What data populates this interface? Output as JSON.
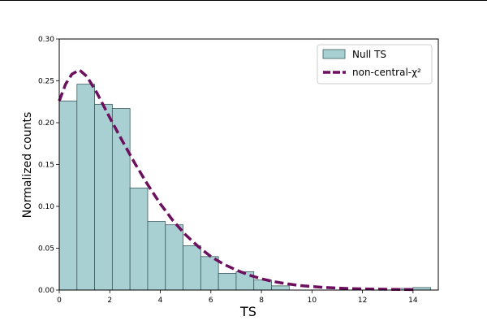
{
  "chart_data": {
    "type": "bar",
    "title": "",
    "xlabel": "TS",
    "ylabel": "Normalized counts",
    "xlim": [
      0,
      15
    ],
    "ylim": [
      0,
      0.3
    ],
    "xticks": [
      0,
      2,
      4,
      6,
      8,
      10,
      12,
      14
    ],
    "yticks": [
      0.0,
      0.05,
      0.1,
      0.15,
      0.2,
      0.25,
      0.3
    ],
    "grid": false,
    "legend_position": "top-right",
    "colors": {
      "bar_fill": "#a8d0d2",
      "bar_edge": "#3d5c5e",
      "curve": "#6b0f5e"
    },
    "series": [
      {
        "name": "Null TS",
        "type": "histogram",
        "bin_width": 0.7,
        "bin_start": 0.0,
        "values": [
          0.226,
          0.246,
          0.222,
          0.217,
          0.122,
          0.082,
          0.078,
          0.053,
          0.04,
          0.02,
          0.022,
          0.012,
          0.005,
          0,
          0,
          0,
          0,
          0,
          0,
          0.002,
          0.003
        ]
      },
      {
        "name": "non-central-χ²",
        "type": "line",
        "style": "dashed",
        "x": [
          0.0,
          0.25,
          0.5,
          0.8,
          1.1,
          1.5,
          2.0,
          2.5,
          3.0,
          3.5,
          4.0,
          4.5,
          5.0,
          5.5,
          6.0,
          6.5,
          7.0,
          7.5,
          8.0,
          8.5,
          9.0,
          9.5,
          10.0,
          10.5,
          11.0,
          11.5,
          12.0,
          12.5,
          13.0,
          13.5,
          14.0
        ],
        "y": [
          0.226,
          0.246,
          0.258,
          0.263,
          0.255,
          0.235,
          0.206,
          0.178,
          0.151,
          0.126,
          0.103,
          0.083,
          0.066,
          0.052,
          0.04,
          0.031,
          0.024,
          0.018,
          0.0135,
          0.01,
          0.0075,
          0.0055,
          0.0042,
          0.0031,
          0.0024,
          0.0018,
          0.0014,
          0.0011,
          0.0009,
          0.0007,
          0.0006
        ]
      }
    ]
  }
}
